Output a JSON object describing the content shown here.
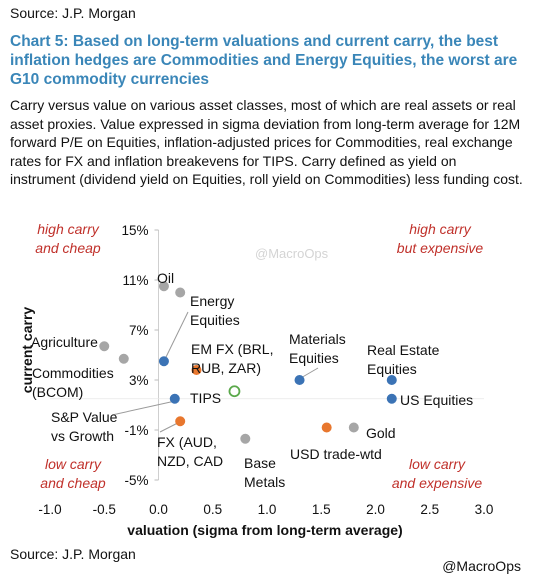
{
  "source_top": "Source: J.P. Morgan",
  "title": "Chart 5: Based on long-term valuations and current carry, the best inflation hedges are Commodities and Energy Equities, the worst are G10 commodity currencies",
  "subtitle": "Carry versus value on various asset classes, most of which are real assets or real asset proxies. Value expressed in sigma deviation from long-term average for 12M forward P/E on Equities, inflation-adjusted prices for Commodities, real exchange rates for FX and inflation breakevens for TIPS. Carry defined as yield on instrument (dividend yield on Equities, roll yield on Commodities) less funding cost.",
  "source_bottom": "Source: J.P. Morgan",
  "credit": "@MacroOps",
  "watermark": "@MacroOps",
  "chart_data": {
    "type": "scatter",
    "xlabel": "valuation (sigma from long-term average)",
    "ylabel": "current carry",
    "xlim": [
      -1.0,
      3.0
    ],
    "ylim": [
      -5,
      15
    ],
    "x_ticks": [
      "-1.0",
      "-0.5",
      "0.0",
      "0.5",
      "1.0",
      "1.5",
      "2.0",
      "2.5",
      "3.0"
    ],
    "y_ticks": [
      "15%",
      "11%",
      "7%",
      "3%",
      "-1%",
      "-5%"
    ],
    "y_tick_values": [
      15,
      11,
      7,
      3,
      -1,
      -5
    ],
    "quadrant_labels": [
      {
        "lines": [
          "high carry",
          "and cheap"
        ],
        "pos": "top-left"
      },
      {
        "lines": [
          "high carry",
          "but expensive"
        ],
        "pos": "top-right"
      },
      {
        "lines": [
          "low carry",
          "and cheap"
        ],
        "pos": "bottom-left"
      },
      {
        "lines": [
          "low carry",
          "and expensive"
        ],
        "pos": "bottom-right"
      }
    ],
    "colors": {
      "grey": "#a6a6a6",
      "blue": "#3b73b5",
      "orange": "#e8772e",
      "green": "#5aa84a"
    },
    "points": [
      {
        "label": [
          "Oil"
        ],
        "x": 0.05,
        "y": 10.5,
        "color": "grey"
      },
      {
        "label": [
          "Energy",
          "Equities"
        ],
        "x": 0.2,
        "y": 10.0,
        "color": "grey"
      },
      {
        "label": [
          "Agriculture"
        ],
        "x": -0.5,
        "y": 5.7,
        "color": "grey"
      },
      {
        "label": [
          "Commodities",
          "(BCOM)"
        ],
        "x": -0.32,
        "y": 4.7,
        "color": "grey"
      },
      {
        "label": [
          "EM FX (BRL,",
          "RUB, ZAR)"
        ],
        "x": 0.35,
        "y": 3.8,
        "color": "orange"
      },
      {
        "label": [
          "TIPS"
        ],
        "x": 0.7,
        "y": 2.1,
        "color": "green",
        "hollow": true
      },
      {
        "label": [
          "Materials",
          "Equities"
        ],
        "x": 1.3,
        "y": 3.0,
        "color": "blue"
      },
      {
        "label": [
          "Real Estate",
          "Equities"
        ],
        "x": 2.15,
        "y": 3.0,
        "color": "blue"
      },
      {
        "label": [
          "US Equities"
        ],
        "x": 2.15,
        "y": 1.5,
        "color": "blue"
      },
      {
        "label": [
          "S&P Value",
          "vs Growth"
        ],
        "x": 0.15,
        "y": 1.5,
        "color": "blue"
      },
      {
        "label": [
          "FX (AUD,",
          "NZD, CAD"
        ],
        "x": 0.2,
        "y": -0.3,
        "color": "orange"
      },
      {
        "label": [
          "Base",
          "Metals"
        ],
        "x": 0.8,
        "y": -1.7,
        "color": "grey"
      },
      {
        "label": [
          "USD trade-wtd"
        ],
        "x": 1.55,
        "y": -0.8,
        "color": "orange"
      },
      {
        "label": [
          "Gold"
        ],
        "x": 1.8,
        "y": -0.8,
        "color": "grey"
      },
      {
        "label": [],
        "x": 0.05,
        "y": 4.5,
        "color": "blue"
      }
    ]
  }
}
